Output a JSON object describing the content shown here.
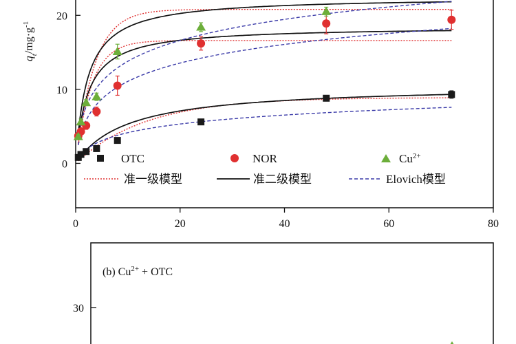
{
  "chart_data": [
    {
      "type": "scatter",
      "panel": "a",
      "ylabel_main": "q",
      "ylabel_sub": "t",
      "ylabel_unit": "/mg·g",
      "ylabel_exp": "-1",
      "xlim": [
        0,
        80
      ],
      "ylim": [
        -6,
        23
      ],
      "x_ticks": [
        0,
        20,
        40,
        60,
        80
      ],
      "x_tick_labels": [
        "0",
        "20",
        "40",
        "60",
        "80"
      ],
      "y_ticks": [
        0,
        10,
        20
      ],
      "y_tick_labels": [
        "0",
        "10",
        "20"
      ],
      "grid": false,
      "legend_position": "bottom-inside",
      "series": [
        {
          "name": "OTC",
          "marker": "square",
          "color": "#1a1a1a",
          "x": [
            0.5,
            1,
            2,
            4,
            8,
            24,
            48,
            72
          ],
          "y": [
            0.8,
            1.2,
            1.6,
            2.0,
            3.1,
            5.6,
            8.8,
            9.3
          ],
          "err": [
            0.2,
            0.2,
            0.2,
            0.2,
            0.2,
            0.3,
            0.3,
            0.5
          ]
        },
        {
          "name": "NOR",
          "marker": "circle",
          "color": "#e03030",
          "x": [
            0.5,
            1,
            2,
            4,
            8,
            24,
            48,
            72
          ],
          "y": [
            3.7,
            4.3,
            5.1,
            7.0,
            10.5,
            16.2,
            18.9,
            19.4
          ],
          "err": [
            0.3,
            0.4,
            0.5,
            0.6,
            1.3,
            0.9,
            1.4,
            1.3
          ]
        },
        {
          "name": "Cu",
          "name_sup": "2+",
          "marker": "triangle",
          "color": "#6cae3a",
          "x": [
            0.5,
            1,
            2,
            4,
            8,
            24,
            48
          ],
          "y": [
            3.6,
            5.6,
            8.2,
            9.0,
            15.1,
            18.4,
            20.5
          ],
          "err": [
            0.3,
            0.4,
            0.4,
            0.5,
            1.0,
            0.6,
            0.6
          ]
        }
      ],
      "models": [
        {
          "name": "准一级模型",
          "style": "dotted",
          "color": "#e03030"
        },
        {
          "name": "准二级模型",
          "style": "solid",
          "color": "#111111"
        },
        {
          "name": "Elovich模型",
          "style": "dashed",
          "color": "#3a3aa8"
        }
      ]
    },
    {
      "type": "scatter",
      "panel": "b",
      "title_prefix": "(b) Cu",
      "title_sup": "2+",
      "title_suffix": " + OTC",
      "y_ticks": [
        30
      ],
      "y_tick_labels": [
        "30"
      ]
    }
  ]
}
